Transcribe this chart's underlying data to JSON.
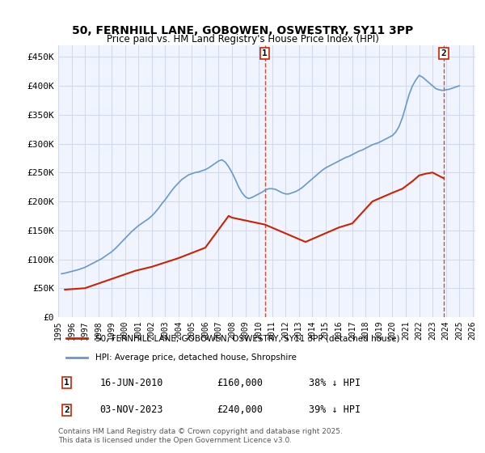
{
  "title_line1": "50, FERNHILL LANE, GOBOWEN, OSWESTRY, SY11 3PP",
  "title_line2": "Price paid vs. HM Land Registry's House Price Index (HPI)",
  "ylabel": "",
  "xlabel": "",
  "ylim": [
    0,
    470000
  ],
  "yticks": [
    0,
    50000,
    100000,
    150000,
    200000,
    250000,
    300000,
    350000,
    400000,
    450000
  ],
  "ytick_labels": [
    "£0",
    "£50K",
    "£100K",
    "£150K",
    "£200K",
    "£250K",
    "£300K",
    "£350K",
    "£400K",
    "£450K"
  ],
  "xlim_start": 1995.3,
  "xlim_end": 2026.2,
  "xticks": [
    1995,
    1996,
    1997,
    1998,
    1999,
    2000,
    2001,
    2002,
    2003,
    2004,
    2005,
    2006,
    2007,
    2008,
    2009,
    2010,
    2011,
    2012,
    2013,
    2014,
    2015,
    2016,
    2017,
    2018,
    2019,
    2020,
    2021,
    2022,
    2023,
    2024,
    2025,
    2026
  ],
  "background_color": "#ffffff",
  "plot_bg_color": "#f0f4ff",
  "grid_color": "#d0d8f0",
  "hpi_color": "#6699cc",
  "price_color": "#cc2200",
  "marker1_date": 2010.46,
  "marker2_date": 2023.84,
  "marker1_price": 160000,
  "marker2_price": 240000,
  "legend_label_red": "50, FERNHILL LANE, GOBOWEN, OSWESTRY, SY11 3PP (detached house)",
  "legend_label_blue": "HPI: Average price, detached house, Shropshire",
  "annotation1_label": "1",
  "annotation2_label": "2",
  "note1_num": "1",
  "note1_date": "16-JUN-2010",
  "note1_price": "£160,000",
  "note1_hpi": "38% ↓ HPI",
  "note2_num": "2",
  "note2_date": "03-NOV-2023",
  "note2_price": "£240,000",
  "note2_hpi": "39% ↓ HPI",
  "copyright_text": "Contains HM Land Registry data © Crown copyright and database right 2025.\nThis data is licensed under the Open Government Licence v3.0.",
  "hpi_x": [
    1995.25,
    1995.5,
    1995.75,
    1996.0,
    1996.25,
    1996.5,
    1996.75,
    1997.0,
    1997.25,
    1997.5,
    1997.75,
    1998.0,
    1998.25,
    1998.5,
    1998.75,
    1999.0,
    1999.25,
    1999.5,
    1999.75,
    2000.0,
    2000.25,
    2000.5,
    2000.75,
    2001.0,
    2001.25,
    2001.5,
    2001.75,
    2002.0,
    2002.25,
    2002.5,
    2002.75,
    2003.0,
    2003.25,
    2003.5,
    2003.75,
    2004.0,
    2004.25,
    2004.5,
    2004.75,
    2005.0,
    2005.25,
    2005.5,
    2005.75,
    2006.0,
    2006.25,
    2006.5,
    2006.75,
    2007.0,
    2007.25,
    2007.5,
    2007.75,
    2008.0,
    2008.25,
    2008.5,
    2008.75,
    2009.0,
    2009.25,
    2009.5,
    2009.75,
    2010.0,
    2010.25,
    2010.5,
    2010.75,
    2011.0,
    2011.25,
    2011.5,
    2011.75,
    2012.0,
    2012.25,
    2012.5,
    2012.75,
    2013.0,
    2013.25,
    2013.5,
    2013.75,
    2014.0,
    2014.25,
    2014.5,
    2014.75,
    2015.0,
    2015.25,
    2015.5,
    2015.75,
    2016.0,
    2016.25,
    2016.5,
    2016.75,
    2017.0,
    2017.25,
    2017.5,
    2017.75,
    2018.0,
    2018.25,
    2018.5,
    2018.75,
    2019.0,
    2019.25,
    2019.5,
    2019.75,
    2020.0,
    2020.25,
    2020.5,
    2020.75,
    2021.0,
    2021.25,
    2021.5,
    2021.75,
    2022.0,
    2022.25,
    2022.5,
    2022.75,
    2023.0,
    2023.25,
    2023.5,
    2023.75,
    2024.0,
    2024.25,
    2024.5,
    2024.75,
    2025.0
  ],
  "hpi_y": [
    75000,
    76000,
    77500,
    79000,
    80500,
    82000,
    84000,
    86000,
    89000,
    92000,
    95000,
    98000,
    101000,
    105000,
    109000,
    113000,
    118000,
    124000,
    130000,
    136000,
    142000,
    148000,
    153000,
    158000,
    162000,
    166000,
    170000,
    175000,
    181000,
    188000,
    196000,
    203000,
    211000,
    219000,
    226000,
    232000,
    238000,
    242000,
    246000,
    248000,
    250000,
    251000,
    253000,
    255000,
    258000,
    262000,
    266000,
    270000,
    272000,
    268000,
    260000,
    250000,
    238000,
    225000,
    215000,
    208000,
    205000,
    207000,
    210000,
    213000,
    216000,
    220000,
    222000,
    222000,
    221000,
    218000,
    215000,
    213000,
    213000,
    215000,
    217000,
    220000,
    224000,
    229000,
    234000,
    239000,
    244000,
    249000,
    254000,
    258000,
    261000,
    264000,
    267000,
    270000,
    273000,
    276000,
    278000,
    281000,
    284000,
    287000,
    289000,
    292000,
    295000,
    298000,
    300000,
    302000,
    305000,
    308000,
    311000,
    314000,
    320000,
    330000,
    345000,
    365000,
    385000,
    400000,
    410000,
    418000,
    415000,
    410000,
    405000,
    400000,
    395000,
    393000,
    392000,
    393000,
    394000,
    396000,
    398000,
    400000
  ],
  "price_x": [
    1995.5,
    1997.0,
    2000.75,
    2002.0,
    2004.0,
    2006.0,
    2007.75,
    2008.0,
    2010.46,
    2013.5,
    2016.0,
    2017.0,
    2018.5,
    2019.0,
    2019.5,
    2020.0,
    2020.75,
    2021.5,
    2022.0,
    2022.5,
    2023.0,
    2023.84
  ],
  "price_y": [
    47500,
    50000,
    80000,
    87000,
    102000,
    120000,
    175000,
    172000,
    160000,
    130000,
    155000,
    162000,
    200000,
    205000,
    210000,
    215000,
    222000,
    235000,
    245000,
    248000,
    250000,
    240000
  ]
}
